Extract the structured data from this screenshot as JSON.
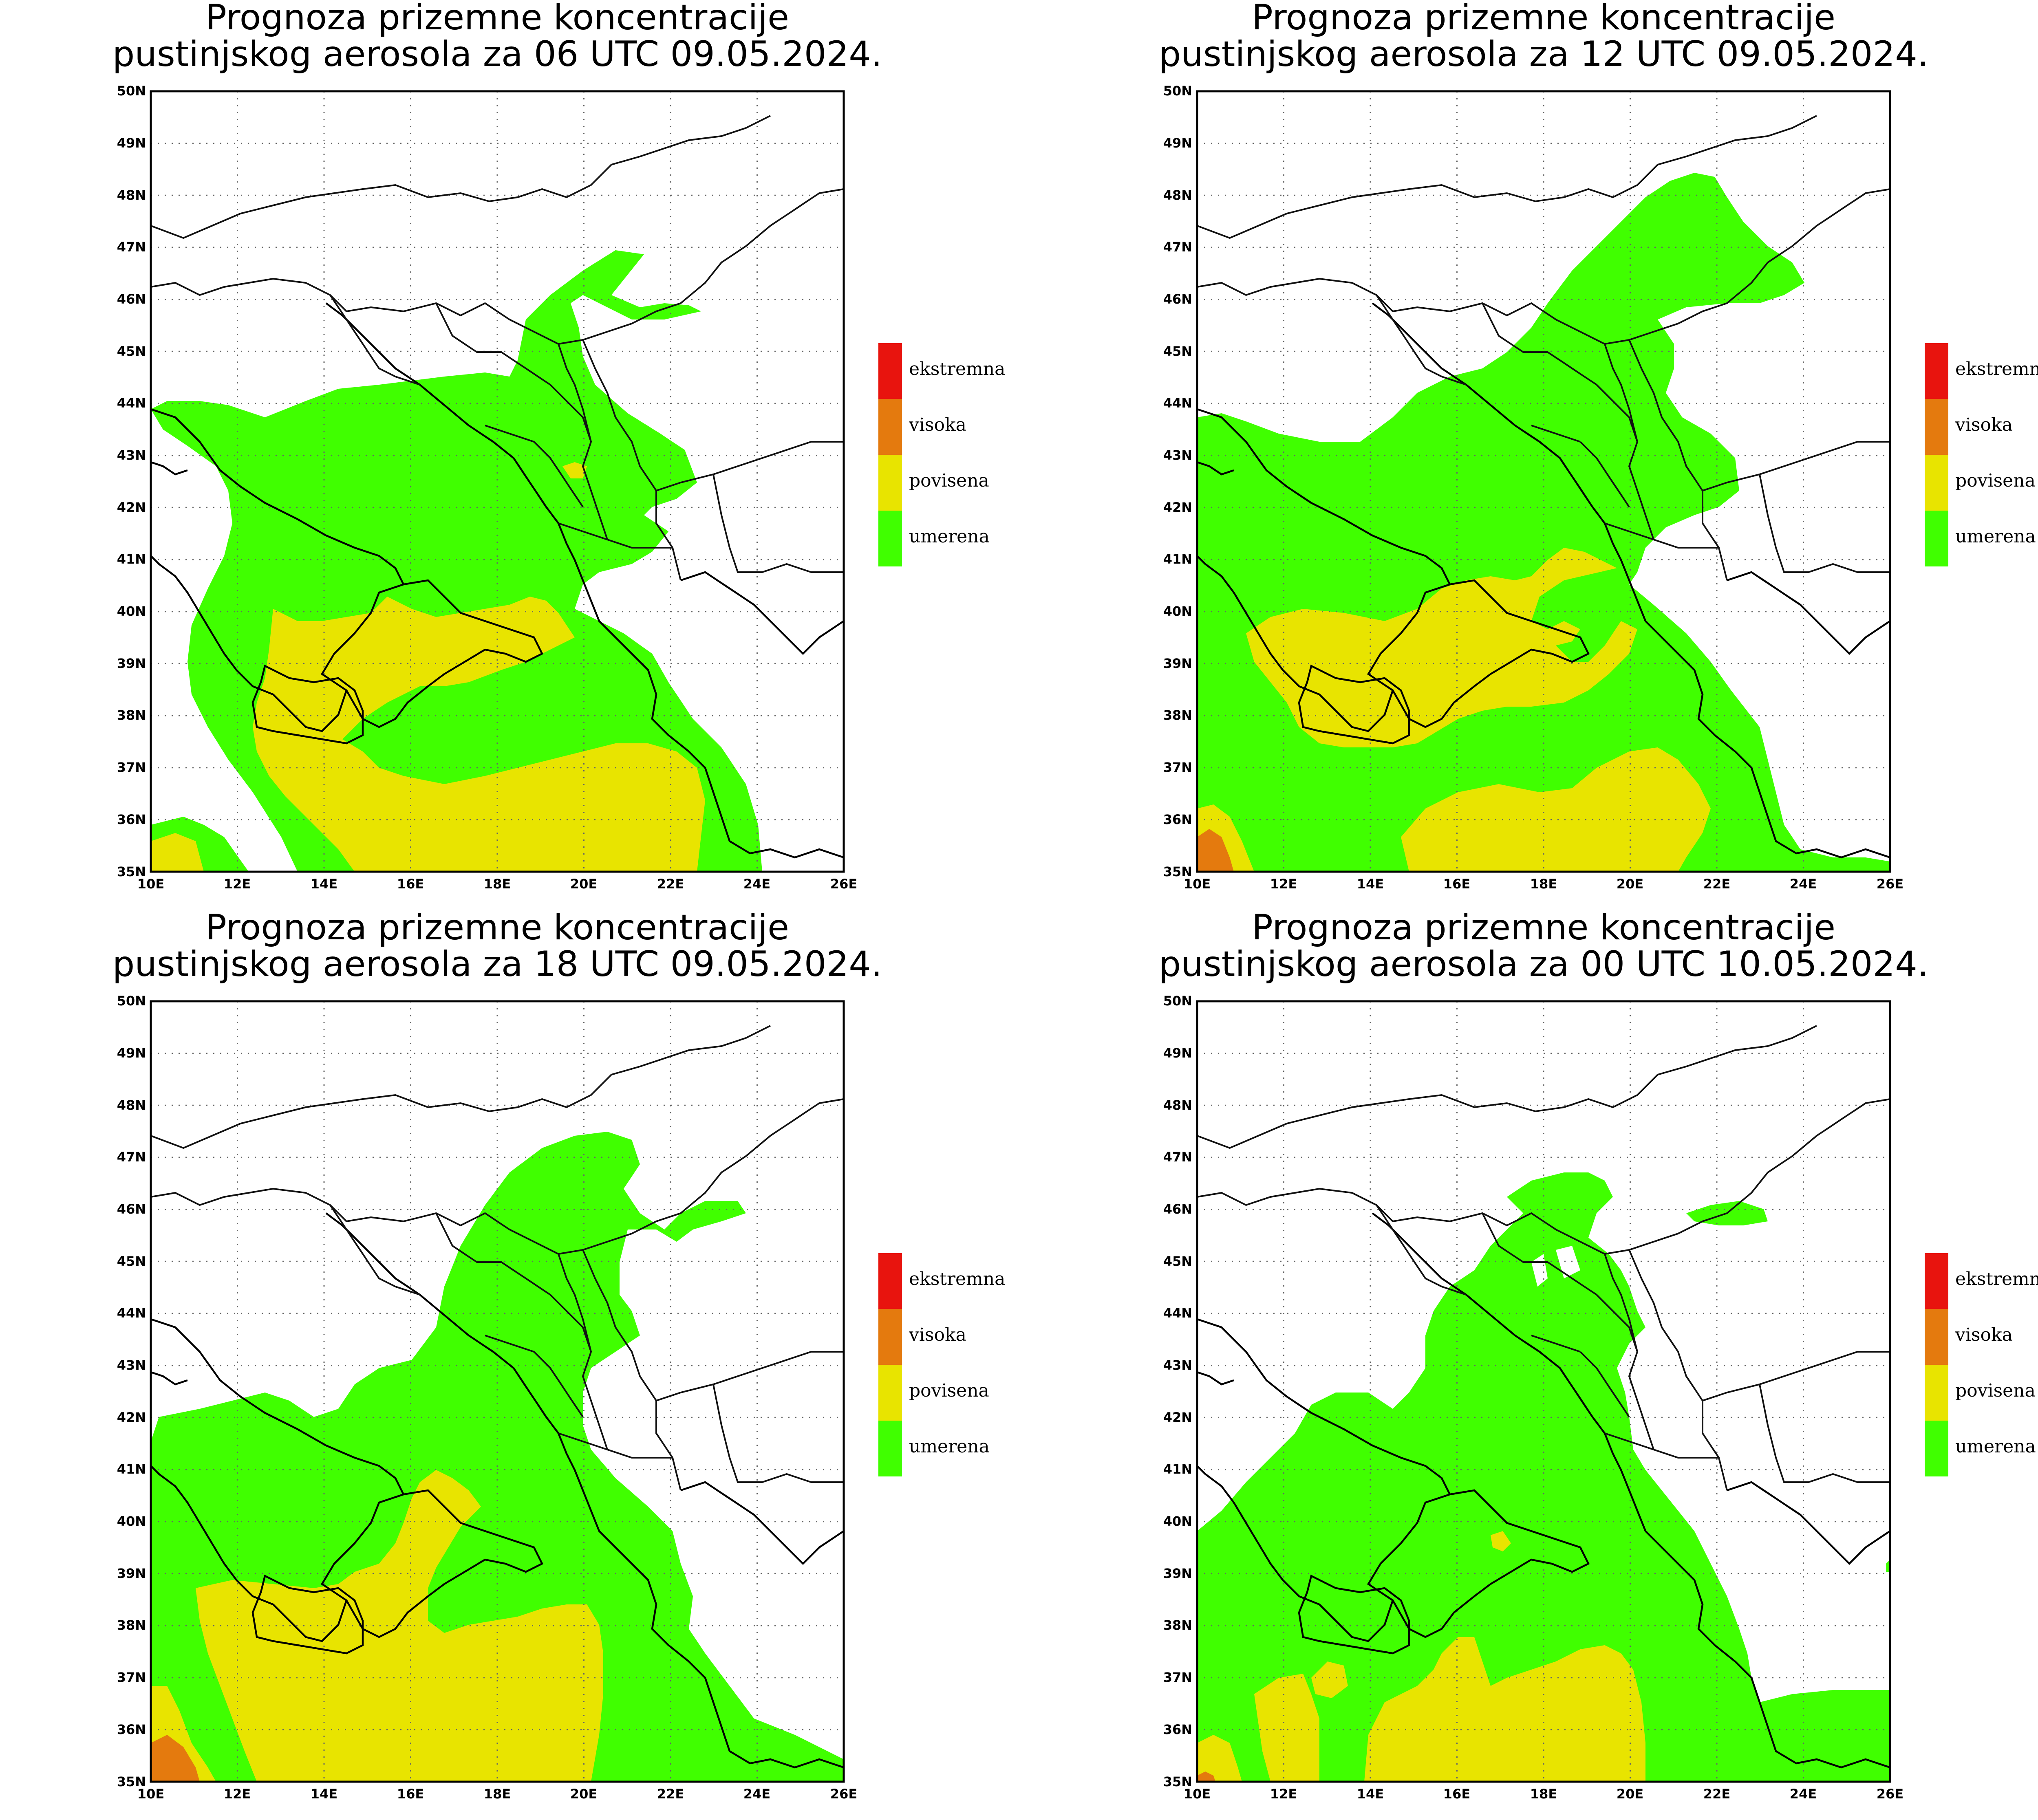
{
  "map": {
    "lon_range": [
      10,
      26
    ],
    "lat_range": [
      35,
      50
    ],
    "lon_tick_labels": [
      "10E",
      "12E",
      "14E",
      "16E",
      "18E",
      "20E",
      "22E",
      "24E",
      "26E"
    ],
    "lat_tick_labels": [
      "35N",
      "36N",
      "37N",
      "38N",
      "39N",
      "40N",
      "41N",
      "42N",
      "43N",
      "44N",
      "45N",
      "46N",
      "47N",
      "48N",
      "49N",
      "50N"
    ],
    "region": "Balkans / Central Mediterranean"
  },
  "legend": {
    "items": [
      {
        "label": "ekstremna",
        "color": "#e8140e"
      },
      {
        "label": "visoka",
        "color": "#e47a0e"
      },
      {
        "label": "povisena",
        "color": "#e8e400"
      },
      {
        "label": "umerena",
        "color": "#40ff00"
      }
    ]
  },
  "panels": [
    {
      "title_line1": "Prognoza prizemne koncentracije",
      "title_line2": "pustinjskog aerosola za 06 UTC 09.05.2024."
    },
    {
      "title_line1": "Prognoza prizemne koncentracije",
      "title_line2": "pustinjskog aerosola za 12 UTC 09.05.2024."
    },
    {
      "title_line1": "Prognoza prizemne koncentracije",
      "title_line2": "pustinjskog aerosola za 18 UTC 09.05.2024."
    },
    {
      "title_line1": "Prognoza prizemne koncentracije",
      "title_line2": "pustinjskog aerosola za 00 UTC 10.05.2024."
    }
  ],
  "colors": {
    "frame": "#000000",
    "background": "#ffffff"
  }
}
